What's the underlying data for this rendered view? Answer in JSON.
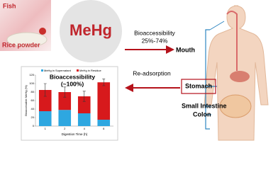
{
  "images": {
    "fish": "Fish",
    "rice": "Rice powder"
  },
  "compound": "MeHg",
  "intake_label": [
    "Bioaccessibility",
    "25%-74%"
  ],
  "readsorption": "Re-adsorption",
  "organs": {
    "mouth": "Mouth",
    "stomach": "Stomach",
    "small_intestine": "Small Intestine",
    "colon": "Colon"
  },
  "chart_data": {
    "type": "bar",
    "stacked": true,
    "annotation": [
      "Bioaccessibility",
      "(~100%)"
    ],
    "xlabel": "Digestion Time (h)",
    "ylabel": "Bioaccessible MeHg (%)",
    "categories": [
      "1",
      "2",
      "4",
      "6"
    ],
    "series": [
      {
        "name": "MeHg in Supernatant",
        "color": "#2ea7e0",
        "values": [
          35,
          38,
          30,
          15
        ]
      },
      {
        "name": "MeHg in Residue",
        "color": "#d7191c",
        "values": [
          50,
          42,
          40,
          88
        ],
        "errors": [
          15,
          12,
          12,
          8
        ]
      }
    ],
    "ylim": [
      0,
      120
    ],
    "yticks": [
      0,
      20,
      40,
      60,
      80,
      100,
      120
    ]
  }
}
